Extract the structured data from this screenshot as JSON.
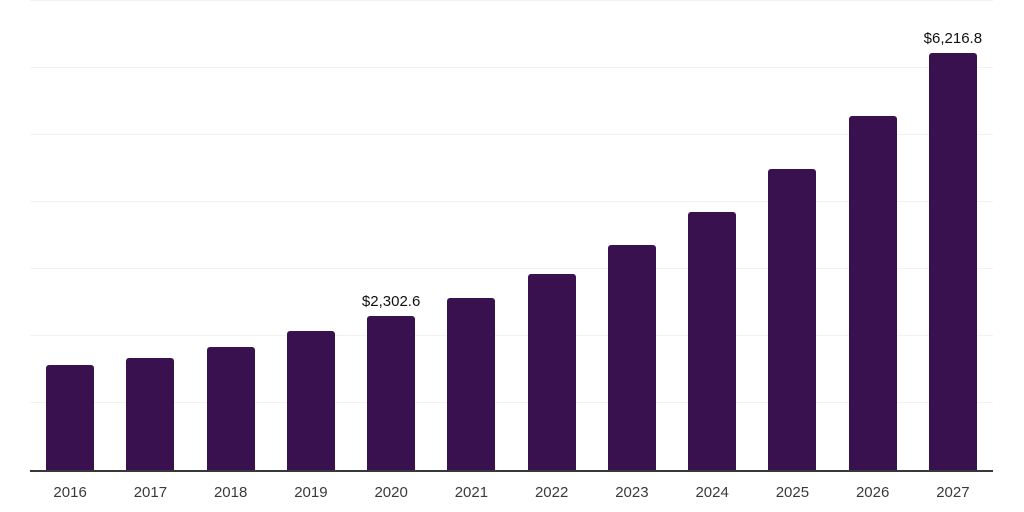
{
  "chart_data": {
    "type": "bar",
    "title": "",
    "xlabel": "",
    "ylabel": "",
    "categories": [
      "2016",
      "2017",
      "2018",
      "2019",
      "2020",
      "2021",
      "2022",
      "2023",
      "2024",
      "2025",
      "2026",
      "2027"
    ],
    "values": [
      1570,
      1670,
      1830,
      2075,
      2302.6,
      2570,
      2930,
      3355,
      3855,
      4490,
      5285,
      6216.8
    ],
    "value_labels": {
      "2020": "$2,302.6",
      "2027": "$6,216.8"
    },
    "ylim": [
      0,
      7000
    ],
    "gridline_step": 1000,
    "grid": "horizontal",
    "legend": "none",
    "bar_color": "#38114e",
    "gridline_color": "#f2f2f4",
    "axis_line_color": "#383838",
    "tick_label_color": "#3a3a3a",
    "value_label_color": "#111111",
    "background_color": "#ffffff"
  }
}
